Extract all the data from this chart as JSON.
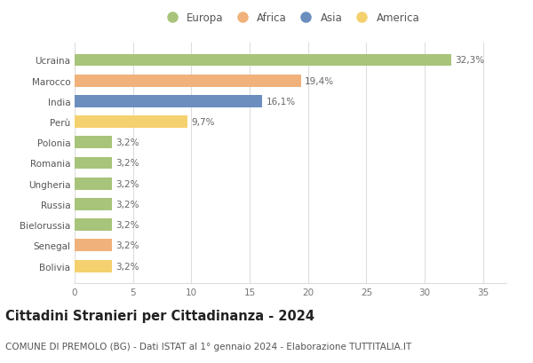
{
  "categories": [
    "Bolivia",
    "Senegal",
    "Bielorussia",
    "Russia",
    "Ungheria",
    "Romania",
    "Polonia",
    "Perù",
    "India",
    "Marocco",
    "Ucraina"
  ],
  "values": [
    3.2,
    3.2,
    3.2,
    3.2,
    3.2,
    3.2,
    3.2,
    9.7,
    16.1,
    19.4,
    32.3
  ],
  "colors": [
    "#f5d06e",
    "#f0b27a",
    "#a8c47a",
    "#a8c47a",
    "#a8c47a",
    "#a8c47a",
    "#a8c47a",
    "#f5d06e",
    "#6b8ebf",
    "#f0b27a",
    "#a8c47a"
  ],
  "labels": [
    "3,2%",
    "3,2%",
    "3,2%",
    "3,2%",
    "3,2%",
    "3,2%",
    "3,2%",
    "9,7%",
    "16,1%",
    "19,4%",
    "32,3%"
  ],
  "legend": [
    {
      "label": "Europa",
      "color": "#a8c47a"
    },
    {
      "label": "Africa",
      "color": "#f0b27a"
    },
    {
      "label": "Asia",
      "color": "#6b8ebf"
    },
    {
      "label": "America",
      "color": "#f5d06e"
    }
  ],
  "xlim": [
    0,
    37
  ],
  "xticks": [
    0,
    5,
    10,
    15,
    20,
    25,
    30,
    35
  ],
  "title": "Cittadini Stranieri per Cittadinanza - 2024",
  "subtitle": "COMUNE DI PREMOLO (BG) - Dati ISTAT al 1° gennaio 2024 - Elaborazione TUTTITALIA.IT",
  "title_fontsize": 10.5,
  "subtitle_fontsize": 7.5,
  "label_fontsize": 7.5,
  "tick_fontsize": 7.5,
  "legend_fontsize": 8.5,
  "background_color": "#ffffff",
  "grid_color": "#dddddd",
  "bar_height": 0.6
}
